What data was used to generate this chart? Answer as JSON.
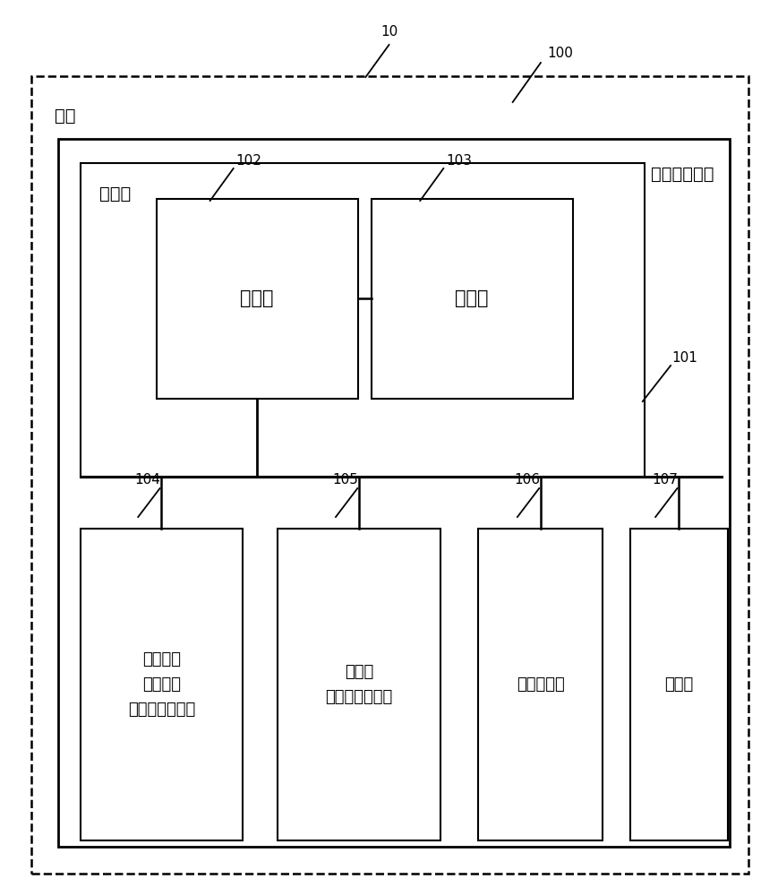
{
  "fig_width": 8.69,
  "fig_height": 10.0,
  "dpi": 100,
  "bg_color": "#ffffff",
  "label_10": "10",
  "label_100": "100",
  "label_101": "101",
  "label_102": "102",
  "label_103": "103",
  "label_104": "104",
  "label_105": "105",
  "label_106": "106",
  "label_107": "107",
  "text_vehicle": "车辆",
  "text_driving_assist": "驾驶辅助装置",
  "text_control": "控制部",
  "text_processor": "处理器",
  "text_memory": "存储器",
  "text_img_processor": "图像处理\n用处理器\n（显示控制部）",
  "text_camera": "摄像机\n（周边检测部）",
  "text_viewpoint": "视点传感器",
  "text_display": "显示器",
  "font_size_ref": 11,
  "font_size_label": 14,
  "font_size_box": 15
}
